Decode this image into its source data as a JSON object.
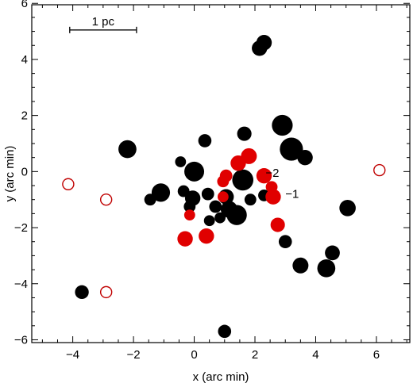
{
  "chart_data": {
    "type": "scatter",
    "xlabel": "x (arc min)",
    "ylabel": "y (arc min)",
    "xlim": [
      -5.35,
      7.1
    ],
    "ylim": [
      -6.1,
      5.95
    ],
    "xticks": [
      -4,
      -2,
      0,
      2,
      4,
      6
    ],
    "yticks": [
      -6,
      -4,
      -2,
      0,
      2,
      4,
      6
    ],
    "xtick_labels": [
      "−4",
      "−2",
      "0",
      "2",
      "4",
      "6"
    ],
    "ytick_labels": [
      "−6",
      "−4",
      "−2",
      "0",
      "2",
      "4",
      "6"
    ],
    "grid": false,
    "colors": {
      "black_points": "#000000",
      "red_points": "#e00000",
      "open_circles": "#c00000"
    },
    "scale_bar": {
      "label": "1 pc",
      "x_start": -4.1,
      "x_end": -1.9,
      "y": 5.05
    },
    "annotations": [
      {
        "text": "−2",
        "x": 2.35,
        "y": -0.05
      },
      {
        "text": "−1",
        "x": 3.0,
        "y": -0.8
      }
    ],
    "series": [
      {
        "marker": "filled circle, size proportional to value",
        "color": "black",
        "points": [
          {
            "x": 2.3,
            "y": 4.6,
            "size": 1
          },
          {
            "x": 2.15,
            "y": 4.4,
            "size": 1
          },
          {
            "x": 2.9,
            "y": 1.65,
            "size": 2.4
          },
          {
            "x": 3.2,
            "y": 0.8,
            "size": 3.2
          },
          {
            "x": 3.65,
            "y": 0.5,
            "size": 1
          },
          {
            "x": 1.65,
            "y": 1.35,
            "size": 0.8
          },
          {
            "x": 0.35,
            "y": 1.1,
            "size": 0.6
          },
          {
            "x": -2.2,
            "y": 0.8,
            "size": 1.6
          },
          {
            "x": -0.45,
            "y": 0.35,
            "size": 0.3
          },
          {
            "x": 0.0,
            "y": 0.0,
            "size": 2.1
          },
          {
            "x": 1.6,
            "y": -0.3,
            "size": 2.5
          },
          {
            "x": -1.1,
            "y": -0.75,
            "size": 1.7
          },
          {
            "x": -0.35,
            "y": -0.7,
            "size": 0.4
          },
          {
            "x": -0.05,
            "y": -0.95,
            "size": 1
          },
          {
            "x": 0.45,
            "y": -0.8,
            "size": 0.5
          },
          {
            "x": -1.45,
            "y": -1.0,
            "size": 0.4
          },
          {
            "x": -0.15,
            "y": -1.25,
            "size": 0.4
          },
          {
            "x": 0.7,
            "y": -1.25,
            "size": 0.5
          },
          {
            "x": 1.05,
            "y": -0.9,
            "size": 1
          },
          {
            "x": 1.15,
            "y": -1.35,
            "size": 1.3
          },
          {
            "x": 1.4,
            "y": -1.55,
            "size": 2.2
          },
          {
            "x": 1.85,
            "y": -1.0,
            "size": 0.4
          },
          {
            "x": 0.85,
            "y": -1.65,
            "size": 0.3
          },
          {
            "x": 0.5,
            "y": -1.75,
            "size": 0.3
          },
          {
            "x": 2.3,
            "y": -0.85,
            "size": 0.4
          },
          {
            "x": 5.05,
            "y": -1.3,
            "size": 1.2
          },
          {
            "x": 3.0,
            "y": -2.5,
            "size": 0.6
          },
          {
            "x": 4.55,
            "y": -2.9,
            "size": 0.9
          },
          {
            "x": 3.5,
            "y": -3.35,
            "size": 1.1
          },
          {
            "x": 4.35,
            "y": -3.45,
            "size": 1.6
          },
          {
            "x": -3.7,
            "y": -4.3,
            "size": 0.7
          },
          {
            "x": 1.0,
            "y": -5.7,
            "size": 0.6
          }
        ]
      },
      {
        "marker": "filled circle, size proportional to value",
        "color": "red",
        "points": [
          {
            "x": 1.8,
            "y": 0.55,
            "size": 1.1
          },
          {
            "x": 1.45,
            "y": 0.3,
            "size": 1
          },
          {
            "x": 2.3,
            "y": -0.15,
            "size": 1
          },
          {
            "x": 1.05,
            "y": -0.15,
            "size": 0.5
          },
          {
            "x": 0.95,
            "y": -0.35,
            "size": 0.4
          },
          {
            "x": 2.55,
            "y": -0.55,
            "size": 0.4
          },
          {
            "x": 2.6,
            "y": -0.9,
            "size": 1
          },
          {
            "x": 0.95,
            "y": -0.9,
            "size": 0.3
          },
          {
            "x": -0.15,
            "y": -1.55,
            "size": 0.3
          },
          {
            "x": 2.75,
            "y": -1.9,
            "size": 0.8
          },
          {
            "x": 0.4,
            "y": -2.3,
            "size": 1
          },
          {
            "x": -0.3,
            "y": -2.4,
            "size": 1
          }
        ]
      },
      {
        "marker": "open circle",
        "color": "red",
        "points": [
          {
            "x": -4.15,
            "y": -0.45
          },
          {
            "x": -2.9,
            "y": -1.0
          },
          {
            "x": 6.1,
            "y": 0.05
          },
          {
            "x": -2.9,
            "y": -4.3
          }
        ]
      }
    ]
  }
}
